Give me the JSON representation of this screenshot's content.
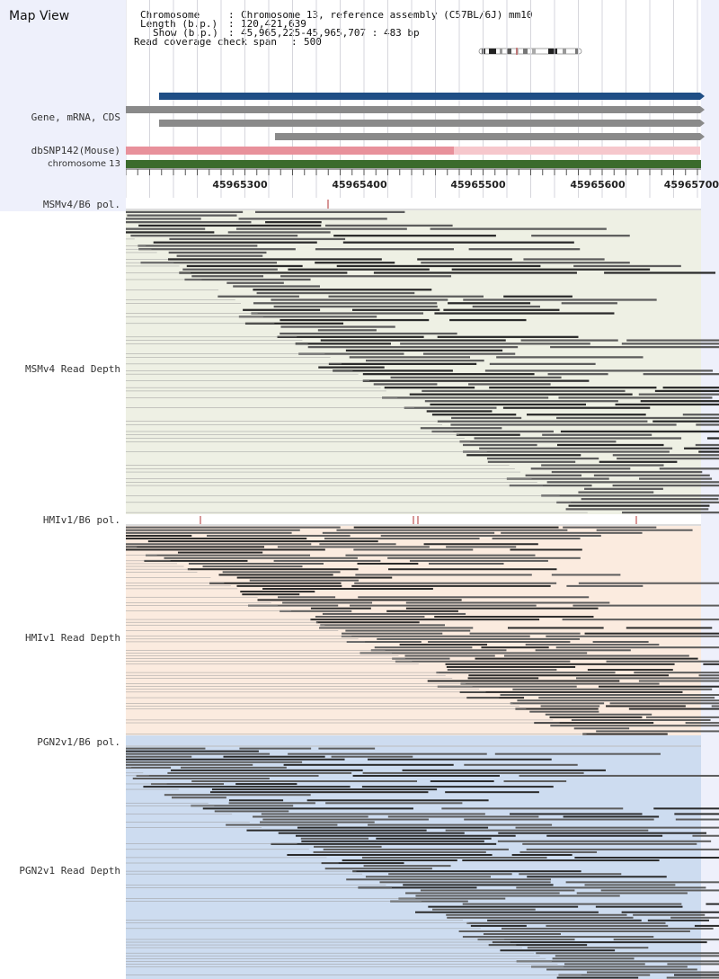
{
  "header": {
    "title": "Map View",
    "chromosome_label": "Chromosome",
    "chromosome_value": "Chromosome 13, reference assembly (C57BL/6J) mm10",
    "length_label": "Length (b.p.)",
    "length_value": "120,421,639",
    "show_label": "Show (b.p.)",
    "show_value": "45,965,225-45,965,707 : 483 bp",
    "coverage_label": "Read coverage check span",
    "coverage_value": "500"
  },
  "tracks": {
    "gene_label": "Gene, mRNA, CDS",
    "dbsnp_label": "dbSNP142(Mouse)",
    "chromosome_label": "chromosome 13"
  },
  "ruler": {
    "ticks": [
      "45965300",
      "45965400",
      "45965500",
      "45965600",
      "45965700"
    ]
  },
  "panels": [
    {
      "pol_label": "MSMv4/B6 pol.",
      "depth_label": "MSMv4 Read Depth",
      "bg_color": "#eef0e4"
    },
    {
      "pol_label": "HMIv1/B6 pol.",
      "depth_label": "HMIv1 Read Depth",
      "bg_color": "#fbebdf"
    },
    {
      "pol_label": "PGN2v1/B6 pol.",
      "depth_label": "PGN2v1 Read Depth",
      "bg_color": "#cddcf0"
    }
  ],
  "colors": {
    "gene_blue": "#1f4e85",
    "gene_gray": "#8a8a8a",
    "dbsnp_pink": "#e8919b",
    "chromosome_green": "#3b6b2c",
    "read_dark": "#2a2a2a",
    "read_mid": "#5c5c5c",
    "pol_marker": "#b03030"
  }
}
